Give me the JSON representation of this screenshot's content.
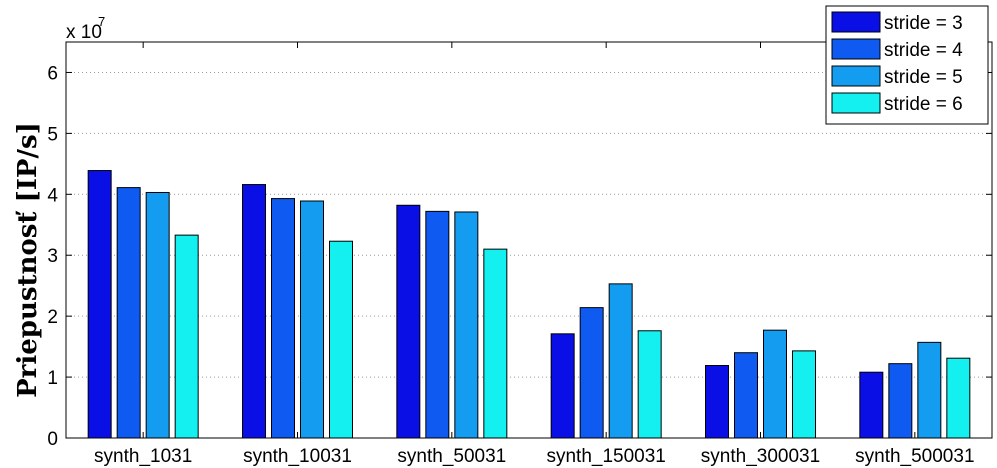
{
  "chart_data": {
    "type": "bar",
    "categories": [
      "synth_1031",
      "synth_10031",
      "synth_50031",
      "synth_150031",
      "synth_300031",
      "synth_500031"
    ],
    "series": [
      {
        "name": "stride = 3",
        "color": "#0a0fe6",
        "values": [
          4.39,
          4.16,
          3.82,
          1.71,
          1.19,
          1.08
        ]
      },
      {
        "name": "stride = 4",
        "color": "#0f5af0",
        "values": [
          4.11,
          3.93,
          3.72,
          2.14,
          1.4,
          1.22
        ]
      },
      {
        "name": "stride = 5",
        "color": "#149cf0",
        "values": [
          4.03,
          3.89,
          3.71,
          2.53,
          1.77,
          1.57
        ]
      },
      {
        "name": "stride = 6",
        "color": "#14f0f0",
        "values": [
          3.33,
          3.23,
          3.1,
          1.76,
          1.43,
          1.31
        ]
      }
    ],
    "ylabel": "Priepustnosť [IP/s]",
    "xlabel": "",
    "title": "",
    "y_multiplier_label": "x 10",
    "y_multiplier_exponent": "7",
    "ylim": [
      0,
      6.5
    ],
    "yticks": [
      0,
      1,
      2,
      3,
      4,
      5,
      6
    ],
    "grid": "horizontal-dotted",
    "legend_position": "top-right"
  }
}
